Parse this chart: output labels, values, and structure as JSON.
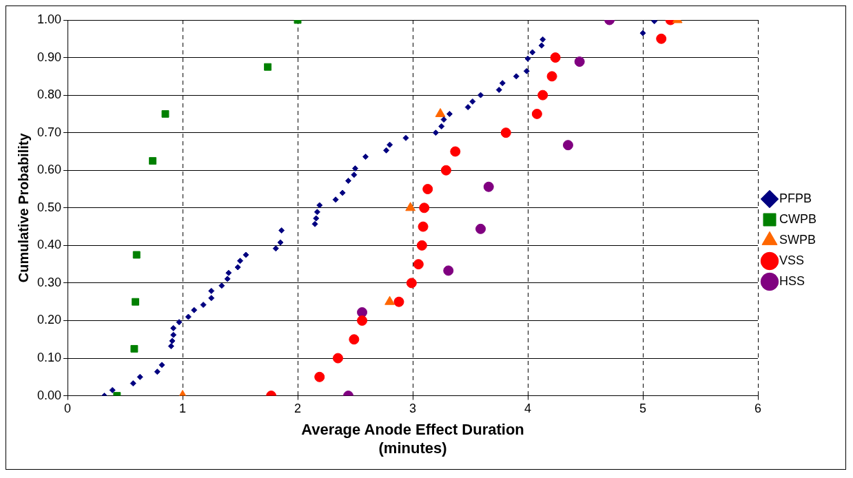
{
  "chart_data": {
    "type": "scatter",
    "xlabel": "Average Anode Effect Duration (minutes)",
    "ylabel": "Cumulative Probability",
    "xlim": [
      0,
      6
    ],
    "xticks": [
      0,
      1,
      2,
      3,
      4,
      5,
      6
    ],
    "ylim": [
      0,
      1
    ],
    "yticks": [
      {
        "value": 0,
        "label": "0.00"
      },
      {
        "value": 0.1,
        "label": "0.10"
      },
      {
        "value": 0.2,
        "label": "0.20"
      },
      {
        "value": 0.3,
        "label": "0.30"
      },
      {
        "value": 0.4,
        "label": "0.40"
      },
      {
        "value": 0.5,
        "label": "0.50"
      },
      {
        "value": 0.6,
        "label": "0.60"
      },
      {
        "value": 0.7,
        "label": "0.70"
      },
      {
        "value": 0.8,
        "label": "0.80"
      },
      {
        "value": 0.9,
        "label": "0.90"
      },
      {
        "value": 1,
        "label": "1.00"
      }
    ],
    "grid": true,
    "legend": "right",
    "series": [
      {
        "name": "PFPB",
        "color": "#000080",
        "marker": "diamond",
        "x": [
          0.32,
          0.39,
          0.57,
          0.63,
          0.78,
          0.82,
          0.9,
          0.91,
          0.92,
          0.92,
          0.97,
          1.05,
          1.1,
          1.18,
          1.25,
          1.25,
          1.34,
          1.39,
          1.4,
          1.48,
          1.5,
          1.55,
          1.81,
          1.85,
          1.86,
          2.15,
          2.16,
          2.17,
          2.19,
          2.33,
          2.39,
          2.44,
          2.49,
          2.5,
          2.59,
          2.77,
          2.8,
          2.94,
          3.2,
          3.25,
          3.27,
          3.32,
          3.48,
          3.52,
          3.59,
          3.75,
          3.78,
          3.9,
          3.99,
          4.0,
          4.04,
          4.12,
          4.13,
          5.0,
          5.1
        ],
        "values": [
          0,
          0.015,
          0.033,
          0.05,
          0.064,
          0.082,
          0.132,
          0.146,
          0.162,
          0.18,
          0.196,
          0.21,
          0.228,
          0.242,
          0.26,
          0.279,
          0.293,
          0.311,
          0.327,
          0.342,
          0.359,
          0.375,
          0.392,
          0.408,
          0.44,
          0.457,
          0.472,
          0.489,
          0.507,
          0.522,
          0.54,
          0.572,
          0.588,
          0.605,
          0.636,
          0.653,
          0.668,
          0.686,
          0.7,
          0.717,
          0.735,
          0.75,
          0.768,
          0.783,
          0.8,
          0.814,
          0.832,
          0.85,
          0.864,
          0.897,
          0.914,
          0.932,
          0.948,
          0.965,
          0.997
        ]
      },
      {
        "name": "CWPB",
        "color": "#008000",
        "marker": "square",
        "x": [
          0.43,
          0.58,
          0.59,
          0.6,
          0.74,
          0.85,
          1.74,
          2.0
        ],
        "values": [
          0,
          0.125,
          0.25,
          0.375,
          0.625,
          0.75,
          0.875,
          1.0
        ]
      },
      {
        "name": "SWPB",
        "color": "#ff6600",
        "marker": "triangle",
        "x": [
          1.0,
          2.8,
          2.98,
          3.24,
          5.3
        ],
        "values": [
          0,
          0.25,
          0.5,
          0.75,
          1.0
        ]
      },
      {
        "name": "VSS",
        "color": "#ff0000",
        "marker": "circle",
        "x": [
          1.77,
          2.19,
          2.35,
          2.49,
          2.56,
          2.88,
          2.99,
          3.05,
          3.08,
          3.09,
          3.1,
          3.13,
          3.29,
          3.37,
          3.81,
          4.08,
          4.13,
          4.21,
          4.24,
          5.16,
          5.24
        ],
        "values": [
          0,
          0.05,
          0.1,
          0.15,
          0.2,
          0.25,
          0.3,
          0.35,
          0.4,
          0.45,
          0.5,
          0.55,
          0.6,
          0.65,
          0.7,
          0.75,
          0.8,
          0.85,
          0.9,
          0.95,
          1.0
        ]
      },
      {
        "name": "HSS",
        "color": "#800080",
        "marker": "circle",
        "x": [
          2.44,
          2.56,
          3.31,
          3.59,
          3.66,
          4.35,
          4.45,
          4.71
        ],
        "values": [
          0,
          0.222,
          0.333,
          0.444,
          0.556,
          0.667,
          0.889,
          1.0
        ]
      }
    ]
  }
}
